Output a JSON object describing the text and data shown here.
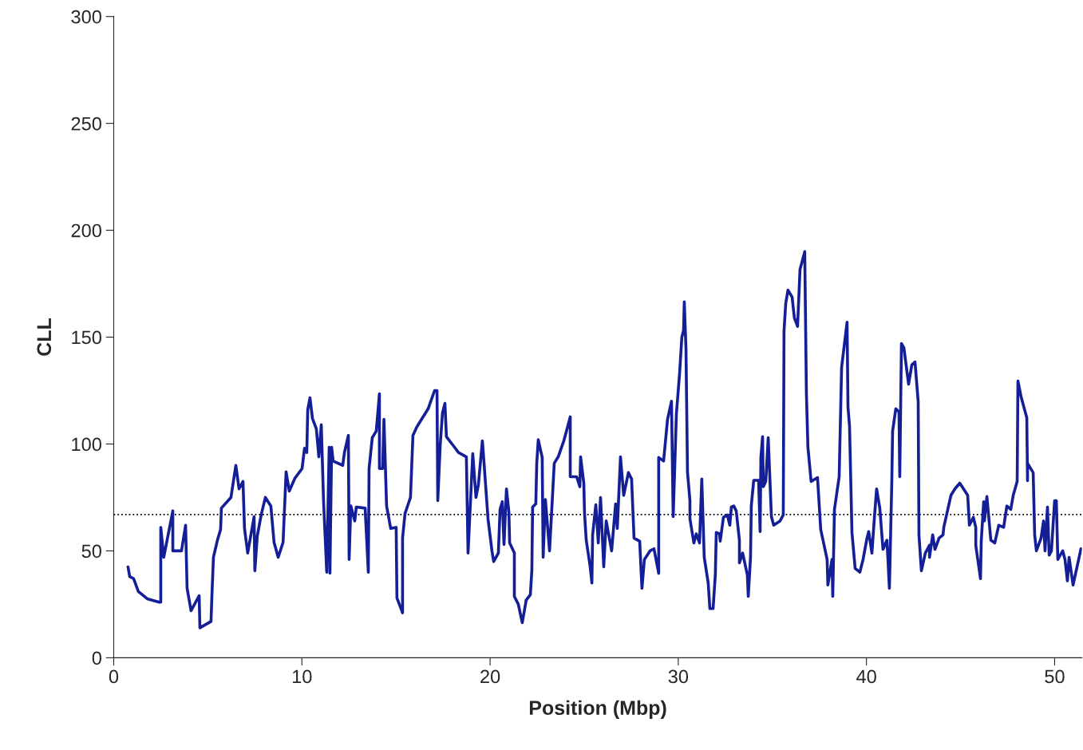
{
  "chart_data": {
    "type": "line",
    "xlabel": "Position (Mbp)",
    "ylabel": "CLL",
    "xlim": [
      0,
      51.45
    ],
    "ylim": [
      0,
      300
    ],
    "xticks": [
      0,
      10,
      20,
      30,
      40,
      50
    ],
    "yticks": [
      0,
      50,
      100,
      150,
      200,
      250,
      300
    ],
    "grid": false,
    "legend": false,
    "marker": "none",
    "line_style": "solid",
    "ref_lines": [
      {
        "axis": "y",
        "value": 67,
        "color": "#000000",
        "line_style": "dotted"
      }
    ],
    "series": [
      {
        "color": "#141e96",
        "x": [
          0.76,
          0.85,
          1.06,
          1.31,
          1.78,
          2.42,
          2.5,
          2.5,
          2.66,
          3.14,
          3.14,
          3.6,
          3.82,
          3.9,
          4.11,
          4.54,
          4.58,
          5.17,
          5.22,
          5.3,
          5.51,
          5.68,
          5.72,
          6.23,
          6.49,
          6.66,
          6.87,
          6.95,
          7.12,
          7.46,
          7.5,
          7.63,
          7.84,
          8.06,
          8.35,
          8.52,
          8.74,
          9.0,
          9.16,
          9.33,
          9.63,
          10.01,
          10.14,
          10.26,
          10.31,
          10.43,
          10.56,
          10.77,
          10.9,
          11.03,
          11.15,
          11.32,
          11.45,
          11.49,
          11.58,
          11.66,
          12.17,
          12.26,
          12.47,
          12.51,
          12.6,
          12.81,
          12.89,
          13.36,
          13.53,
          13.57,
          13.74,
          13.95,
          14.12,
          14.12,
          14.29,
          14.36,
          14.5,
          14.72,
          15.01,
          15.05,
          15.35,
          15.35,
          15.48,
          15.77,
          15.9,
          16.11,
          16.71,
          17.05,
          17.18,
          17.22,
          17.35,
          17.47,
          17.6,
          17.68,
          18.11,
          18.32,
          18.74,
          18.83,
          18.96,
          19.08,
          19.25,
          19.38,
          19.59,
          19.68,
          19.89,
          20.1,
          20.19,
          20.44,
          20.53,
          20.65,
          20.74,
          20.87,
          21.0,
          21.04,
          21.29,
          21.29,
          21.5,
          21.71,
          21.92,
          22.14,
          22.22,
          22.26,
          22.43,
          22.48,
          22.56,
          22.77,
          22.82,
          22.94,
          23.16,
          23.41,
          23.62,
          23.92,
          24.26,
          24.26,
          24.6,
          24.77,
          24.81,
          24.98,
          25.02,
          25.11,
          25.32,
          25.41,
          25.45,
          25.62,
          25.75,
          25.87,
          26.04,
          26.17,
          26.46,
          26.67,
          26.76,
          26.93,
          27.1,
          27.35,
          27.52,
          27.65,
          27.95,
          28.07,
          28.2,
          28.5,
          28.71,
          28.96,
          28.96,
          29.22,
          29.43,
          29.64,
          29.73,
          29.9,
          30.07,
          30.19,
          30.28,
          30.32,
          30.41,
          30.49,
          30.62,
          30.62,
          30.83,
          30.96,
          31.13,
          31.25,
          31.38,
          31.59,
          31.68,
          31.85,
          31.97,
          32.02,
          32.19,
          32.23,
          32.4,
          32.61,
          32.74,
          32.82,
          32.95,
          33.08,
          33.25,
          33.25,
          33.42,
          33.67,
          33.72,
          33.84,
          33.88,
          34.01,
          34.27,
          34.35,
          34.39,
          34.48,
          34.52,
          34.65,
          34.78,
          34.95,
          35.07,
          35.41,
          35.58,
          35.62,
          35.71,
          35.83,
          36.05,
          36.17,
          36.34,
          36.47,
          36.72,
          36.81,
          36.89,
          37.06,
          37.4,
          37.57,
          37.91,
          37.95,
          38.17,
          38.21,
          38.3,
          38.55,
          38.68,
          38.97,
          39.02,
          39.1,
          39.23,
          39.4,
          39.65,
          39.82,
          40.03,
          40.12,
          40.29,
          40.41,
          40.54,
          40.71,
          40.88,
          41.09,
          41.22,
          41.35,
          41.39,
          41.56,
          41.73,
          41.77,
          41.86,
          41.99,
          42.24,
          42.41,
          42.58,
          42.75,
          42.79,
          42.92,
          43.13,
          43.35,
          43.35,
          43.52,
          43.64,
          43.86,
          44.07,
          44.11,
          44.49,
          44.7,
          44.96,
          45.38,
          45.47,
          45.68,
          45.81,
          45.81,
          46.06,
          46.1,
          46.23,
          46.27,
          46.4,
          46.61,
          46.82,
          47.03,
          47.29,
          47.46,
          47.67,
          47.8,
          48.01,
          48.05,
          48.22,
          48.52,
          48.56,
          48.56,
          48.86,
          48.94,
          49.03,
          49.28,
          49.41,
          49.49,
          49.62,
          49.71,
          49.83,
          50.0,
          50.09,
          50.17,
          50.43,
          50.55,
          50.68,
          50.77,
          50.98,
          51.4
        ],
        "values": [
          42.5,
          38,
          37,
          31,
          27.6,
          26,
          26,
          61,
          47,
          68.7,
          50,
          50,
          62,
          32.5,
          22,
          29,
          14,
          17,
          29.5,
          47,
          55,
          60,
          70,
          75,
          90,
          79,
          82.5,
          60.5,
          49,
          66,
          40.7,
          57,
          67,
          75,
          71,
          54,
          47,
          54,
          87,
          78,
          84,
          88.5,
          98,
          96,
          116,
          121.6,
          112,
          107,
          94,
          109,
          73.5,
          40,
          98.5,
          39.5,
          98.5,
          92,
          90,
          96,
          104,
          46,
          71,
          64,
          70.5,
          70,
          40,
          88.5,
          103,
          106,
          123.5,
          88.5,
          88.5,
          111.5,
          71,
          60.5,
          61,
          28,
          21,
          56,
          67.5,
          75,
          104,
          108,
          116.5,
          125,
          125,
          73.5,
          99.6,
          114.5,
          119,
          103.4,
          98.5,
          96,
          94,
          49,
          73.5,
          95.5,
          75,
          81,
          101.5,
          91,
          65,
          50,
          45,
          49,
          69.4,
          73,
          53,
          79,
          68,
          53.7,
          49,
          28.7,
          25,
          16.4,
          27,
          29.5,
          41,
          70.5,
          72,
          91,
          102,
          93.7,
          47,
          74,
          50,
          91,
          94,
          101.5,
          112.7,
          84.7,
          84.7,
          80,
          94,
          81.7,
          67.5,
          55,
          42.5,
          35,
          57.5,
          71.6,
          53.7,
          75,
          42.5,
          64,
          50,
          72,
          60.5,
          94,
          76,
          86.6,
          83.6,
          56,
          54.5,
          32.5,
          46,
          50,
          51,
          39.5,
          93.7,
          92,
          111.5,
          120,
          66,
          114,
          133,
          150,
          153,
          166.5,
          144.5,
          87,
          73.5,
          65,
          53.7,
          58,
          53.7,
          83.6,
          47,
          35,
          23,
          23,
          39,
          58.6,
          58,
          54.5,
          65.7,
          66.8,
          62,
          70.5,
          71,
          68.7,
          55,
          44.4,
          49,
          38.8,
          28.7,
          47,
          71,
          83,
          83,
          59,
          93.7,
          103.4,
          80,
          82.5,
          103,
          66,
          62,
          64,
          66.8,
          153,
          165.7,
          172,
          168.7,
          159,
          155,
          181.7,
          190,
          123.5,
          98.5,
          82.5,
          84.3,
          60,
          46,
          34,
          46,
          28.7,
          69.4,
          84.7,
          135.8,
          157,
          117,
          108.6,
          58.6,
          41.8,
          40,
          46,
          56,
          59,
          49,
          64,
          79,
          70,
          50.7,
          55,
          32.5,
          83.6,
          106,
          116.5,
          115,
          84.7,
          147,
          145,
          128,
          137,
          138.4,
          119.8,
          57.5,
          40.7,
          49,
          52.6,
          47,
          57.5,
          50.7,
          56,
          57.5,
          61,
          76,
          79,
          81.7,
          76,
          62,
          65.7,
          61,
          52.6,
          37,
          54.5,
          73,
          64,
          75.4,
          55,
          53.7,
          62,
          61,
          71,
          69.4,
          76,
          82.5,
          129.5,
          122,
          112.3,
          82.8,
          91,
          86.6,
          57.5,
          50,
          56,
          64,
          50,
          70.5,
          48,
          50,
          73.5,
          73.5,
          46,
          50,
          46,
          36,
          47,
          34,
          51
        ]
      }
    ]
  }
}
